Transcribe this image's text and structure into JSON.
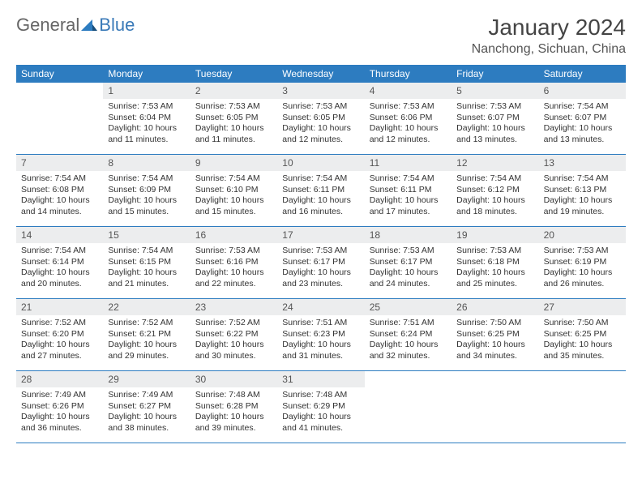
{
  "logo": {
    "part1": "General",
    "part2": "Blue"
  },
  "title": "January 2024",
  "location": "Nanchong, Sichuan, China",
  "colors": {
    "header_bg": "#2d7cc0",
    "header_text": "#ffffff",
    "daynum_bg": "#ecedee",
    "border": "#2d7cc0",
    "text": "#333333",
    "logo_general": "#666666",
    "logo_blue": "#3a7ab8"
  },
  "day_names": [
    "Sunday",
    "Monday",
    "Tuesday",
    "Wednesday",
    "Thursday",
    "Friday",
    "Saturday"
  ],
  "weeks": [
    [
      {
        "n": "",
        "empty": true
      },
      {
        "n": "1",
        "sunrise": "7:53 AM",
        "sunset": "6:04 PM",
        "daylight": "10 hours and 11 minutes."
      },
      {
        "n": "2",
        "sunrise": "7:53 AM",
        "sunset": "6:05 PM",
        "daylight": "10 hours and 11 minutes."
      },
      {
        "n": "3",
        "sunrise": "7:53 AM",
        "sunset": "6:05 PM",
        "daylight": "10 hours and 12 minutes."
      },
      {
        "n": "4",
        "sunrise": "7:53 AM",
        "sunset": "6:06 PM",
        "daylight": "10 hours and 12 minutes."
      },
      {
        "n": "5",
        "sunrise": "7:53 AM",
        "sunset": "6:07 PM",
        "daylight": "10 hours and 13 minutes."
      },
      {
        "n": "6",
        "sunrise": "7:54 AM",
        "sunset": "6:07 PM",
        "daylight": "10 hours and 13 minutes."
      }
    ],
    [
      {
        "n": "7",
        "sunrise": "7:54 AM",
        "sunset": "6:08 PM",
        "daylight": "10 hours and 14 minutes."
      },
      {
        "n": "8",
        "sunrise": "7:54 AM",
        "sunset": "6:09 PM",
        "daylight": "10 hours and 15 minutes."
      },
      {
        "n": "9",
        "sunrise": "7:54 AM",
        "sunset": "6:10 PM",
        "daylight": "10 hours and 15 minutes."
      },
      {
        "n": "10",
        "sunrise": "7:54 AM",
        "sunset": "6:11 PM",
        "daylight": "10 hours and 16 minutes."
      },
      {
        "n": "11",
        "sunrise": "7:54 AM",
        "sunset": "6:11 PM",
        "daylight": "10 hours and 17 minutes."
      },
      {
        "n": "12",
        "sunrise": "7:54 AM",
        "sunset": "6:12 PM",
        "daylight": "10 hours and 18 minutes."
      },
      {
        "n": "13",
        "sunrise": "7:54 AM",
        "sunset": "6:13 PM",
        "daylight": "10 hours and 19 minutes."
      }
    ],
    [
      {
        "n": "14",
        "sunrise": "7:54 AM",
        "sunset": "6:14 PM",
        "daylight": "10 hours and 20 minutes."
      },
      {
        "n": "15",
        "sunrise": "7:54 AM",
        "sunset": "6:15 PM",
        "daylight": "10 hours and 21 minutes."
      },
      {
        "n": "16",
        "sunrise": "7:53 AM",
        "sunset": "6:16 PM",
        "daylight": "10 hours and 22 minutes."
      },
      {
        "n": "17",
        "sunrise": "7:53 AM",
        "sunset": "6:17 PM",
        "daylight": "10 hours and 23 minutes."
      },
      {
        "n": "18",
        "sunrise": "7:53 AM",
        "sunset": "6:17 PM",
        "daylight": "10 hours and 24 minutes."
      },
      {
        "n": "19",
        "sunrise": "7:53 AM",
        "sunset": "6:18 PM",
        "daylight": "10 hours and 25 minutes."
      },
      {
        "n": "20",
        "sunrise": "7:53 AM",
        "sunset": "6:19 PM",
        "daylight": "10 hours and 26 minutes."
      }
    ],
    [
      {
        "n": "21",
        "sunrise": "7:52 AM",
        "sunset": "6:20 PM",
        "daylight": "10 hours and 27 minutes."
      },
      {
        "n": "22",
        "sunrise": "7:52 AM",
        "sunset": "6:21 PM",
        "daylight": "10 hours and 29 minutes."
      },
      {
        "n": "23",
        "sunrise": "7:52 AM",
        "sunset": "6:22 PM",
        "daylight": "10 hours and 30 minutes."
      },
      {
        "n": "24",
        "sunrise": "7:51 AM",
        "sunset": "6:23 PM",
        "daylight": "10 hours and 31 minutes."
      },
      {
        "n": "25",
        "sunrise": "7:51 AM",
        "sunset": "6:24 PM",
        "daylight": "10 hours and 32 minutes."
      },
      {
        "n": "26",
        "sunrise": "7:50 AM",
        "sunset": "6:25 PM",
        "daylight": "10 hours and 34 minutes."
      },
      {
        "n": "27",
        "sunrise": "7:50 AM",
        "sunset": "6:25 PM",
        "daylight": "10 hours and 35 minutes."
      }
    ],
    [
      {
        "n": "28",
        "sunrise": "7:49 AM",
        "sunset": "6:26 PM",
        "daylight": "10 hours and 36 minutes."
      },
      {
        "n": "29",
        "sunrise": "7:49 AM",
        "sunset": "6:27 PM",
        "daylight": "10 hours and 38 minutes."
      },
      {
        "n": "30",
        "sunrise": "7:48 AM",
        "sunset": "6:28 PM",
        "daylight": "10 hours and 39 minutes."
      },
      {
        "n": "31",
        "sunrise": "7:48 AM",
        "sunset": "6:29 PM",
        "daylight": "10 hours and 41 minutes."
      },
      {
        "n": "",
        "empty": true
      },
      {
        "n": "",
        "empty": true
      },
      {
        "n": "",
        "empty": true
      }
    ]
  ],
  "labels": {
    "sunrise": "Sunrise:",
    "sunset": "Sunset:",
    "daylight": "Daylight:"
  }
}
